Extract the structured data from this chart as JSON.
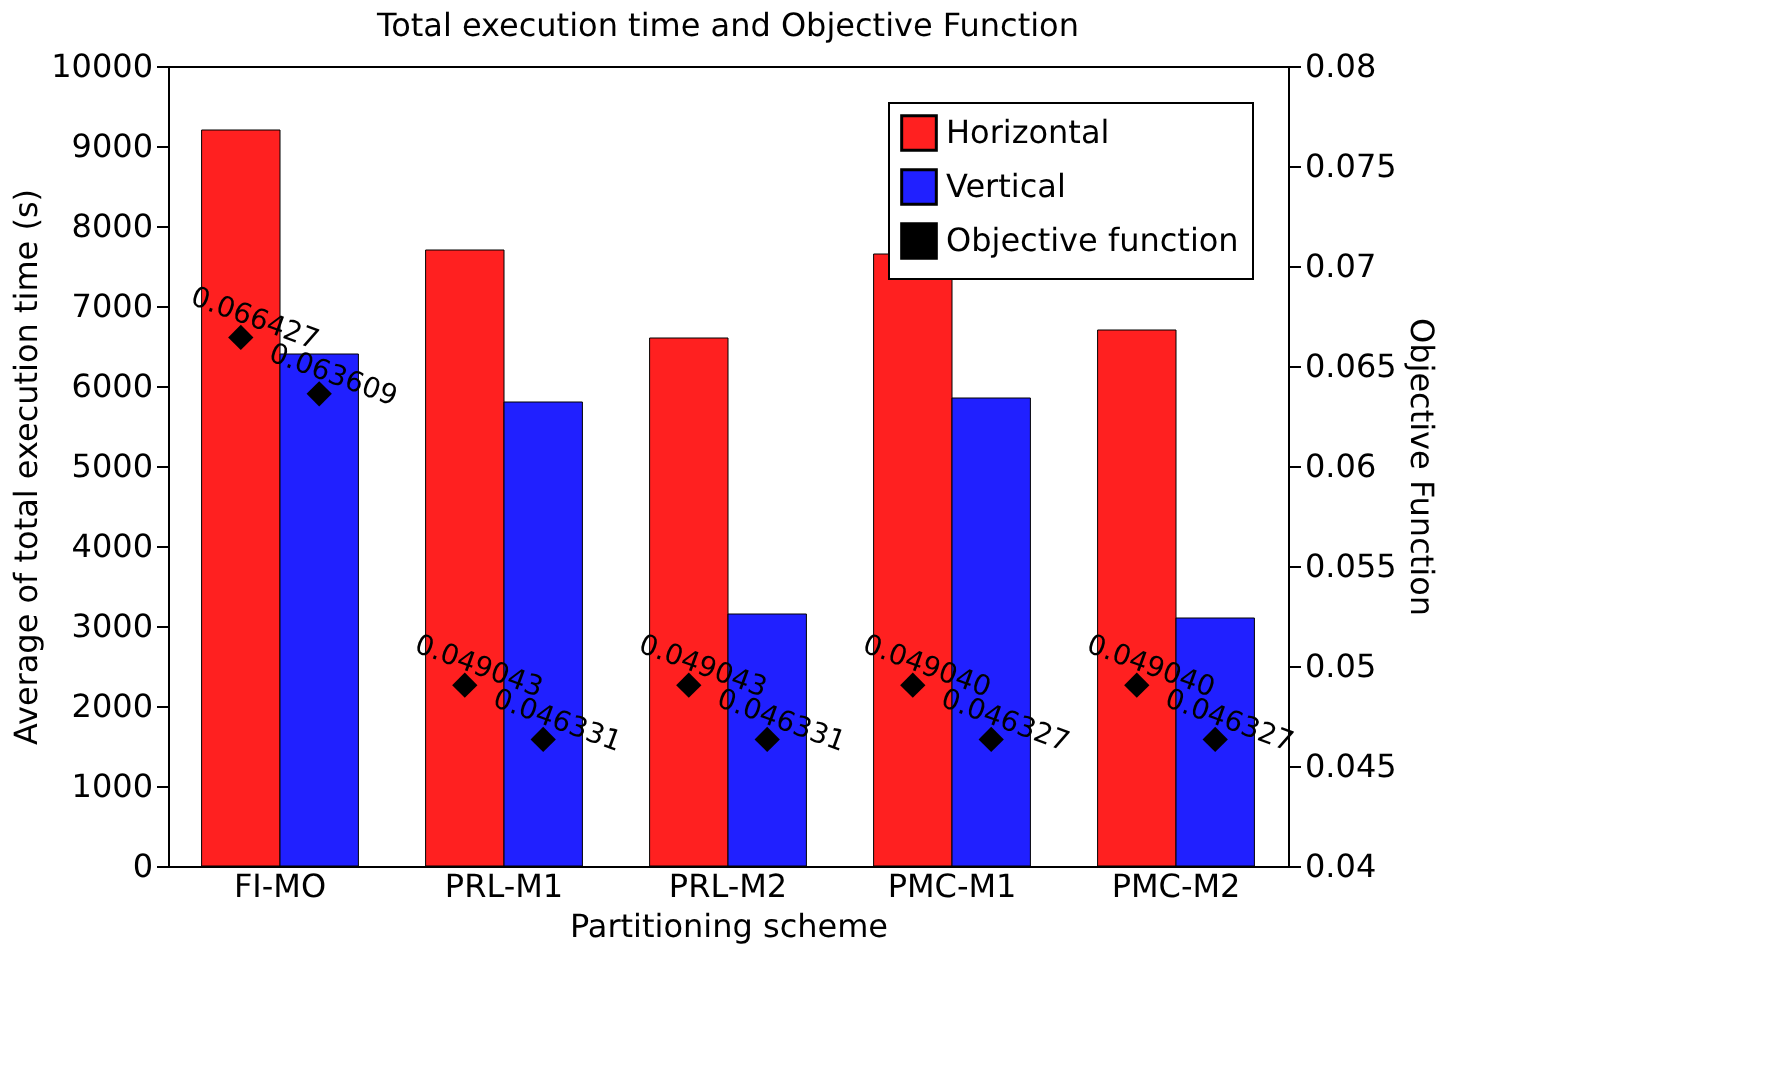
{
  "chart_data": {
    "type": "bar",
    "title": "Total execution time and Objective Function",
    "xlabel": "Partitioning scheme",
    "ylabel": "Average of total execution time (s)",
    "y2label": "Objective Function",
    "categories": [
      "FI-MO",
      "PRL-M1",
      "PRL-M2",
      "PMC-M1",
      "PMC-M2"
    ],
    "series": [
      {
        "name": "Horizontal",
        "color": "#ff2020",
        "values": [
          9200,
          7700,
          6600,
          7650,
          6700
        ]
      },
      {
        "name": "Vertical",
        "color": "#2020ff",
        "values": [
          6400,
          5800,
          3150,
          5850,
          3100
        ]
      },
      {
        "name": "Objective function",
        "type": "scatter",
        "axis": "y2",
        "color": "#000000",
        "marker": "diamond",
        "values": [
          0.066427,
          0.049043,
          0.049043,
          0.04904,
          0.04904
        ],
        "value_labels": [
          "0.066427",
          "0.049043",
          "0.049043",
          "0.049040",
          "0.049040"
        ]
      },
      {
        "type": "scatter",
        "axis": "y2",
        "color": "#000000",
        "marker": "diamond",
        "values": [
          0.063609,
          0.046331,
          0.046331,
          0.046327,
          0.046327
        ],
        "value_labels": [
          "0.063609",
          "0.046331",
          "0.046331",
          "0.046327",
          "0.046327"
        ]
      }
    ],
    "ylim": [
      0,
      10000
    ],
    "yticks": [
      0,
      1000,
      2000,
      3000,
      4000,
      5000,
      6000,
      7000,
      8000,
      9000,
      10000
    ],
    "y2lim": [
      0.04,
      0.08
    ],
    "y2ticks": [
      0.04,
      0.045,
      0.05,
      0.055,
      0.06,
      0.065,
      0.07,
      0.075,
      0.08
    ],
    "legend": "top right",
    "grid": false
  }
}
